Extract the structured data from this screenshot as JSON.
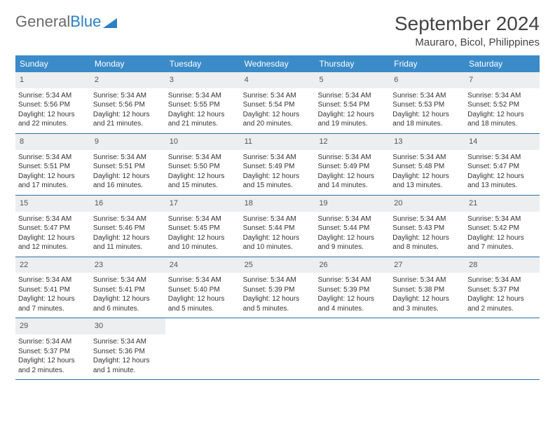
{
  "logo": {
    "text1": "General",
    "text2": "Blue"
  },
  "title": "September 2024",
  "location": "Mauraro, Bicol, Philippines",
  "colors": {
    "header_bg": "#3b8bc9",
    "daynum_bg": "#eceeef",
    "week_border": "#2f6fa3",
    "logo_gray": "#6a6a6a",
    "logo_blue": "#2b7fc3"
  },
  "day_headers": [
    "Sunday",
    "Monday",
    "Tuesday",
    "Wednesday",
    "Thursday",
    "Friday",
    "Saturday"
  ],
  "weeks": [
    [
      {
        "n": "1",
        "sr": "Sunrise: 5:34 AM",
        "ss": "Sunset: 5:56 PM",
        "d1": "Daylight: 12 hours",
        "d2": "and 22 minutes."
      },
      {
        "n": "2",
        "sr": "Sunrise: 5:34 AM",
        "ss": "Sunset: 5:56 PM",
        "d1": "Daylight: 12 hours",
        "d2": "and 21 minutes."
      },
      {
        "n": "3",
        "sr": "Sunrise: 5:34 AM",
        "ss": "Sunset: 5:55 PM",
        "d1": "Daylight: 12 hours",
        "d2": "and 21 minutes."
      },
      {
        "n": "4",
        "sr": "Sunrise: 5:34 AM",
        "ss": "Sunset: 5:54 PM",
        "d1": "Daylight: 12 hours",
        "d2": "and 20 minutes."
      },
      {
        "n": "5",
        "sr": "Sunrise: 5:34 AM",
        "ss": "Sunset: 5:54 PM",
        "d1": "Daylight: 12 hours",
        "d2": "and 19 minutes."
      },
      {
        "n": "6",
        "sr": "Sunrise: 5:34 AM",
        "ss": "Sunset: 5:53 PM",
        "d1": "Daylight: 12 hours",
        "d2": "and 18 minutes."
      },
      {
        "n": "7",
        "sr": "Sunrise: 5:34 AM",
        "ss": "Sunset: 5:52 PM",
        "d1": "Daylight: 12 hours",
        "d2": "and 18 minutes."
      }
    ],
    [
      {
        "n": "8",
        "sr": "Sunrise: 5:34 AM",
        "ss": "Sunset: 5:51 PM",
        "d1": "Daylight: 12 hours",
        "d2": "and 17 minutes."
      },
      {
        "n": "9",
        "sr": "Sunrise: 5:34 AM",
        "ss": "Sunset: 5:51 PM",
        "d1": "Daylight: 12 hours",
        "d2": "and 16 minutes."
      },
      {
        "n": "10",
        "sr": "Sunrise: 5:34 AM",
        "ss": "Sunset: 5:50 PM",
        "d1": "Daylight: 12 hours",
        "d2": "and 15 minutes."
      },
      {
        "n": "11",
        "sr": "Sunrise: 5:34 AM",
        "ss": "Sunset: 5:49 PM",
        "d1": "Daylight: 12 hours",
        "d2": "and 15 minutes."
      },
      {
        "n": "12",
        "sr": "Sunrise: 5:34 AM",
        "ss": "Sunset: 5:49 PM",
        "d1": "Daylight: 12 hours",
        "d2": "and 14 minutes."
      },
      {
        "n": "13",
        "sr": "Sunrise: 5:34 AM",
        "ss": "Sunset: 5:48 PM",
        "d1": "Daylight: 12 hours",
        "d2": "and 13 minutes."
      },
      {
        "n": "14",
        "sr": "Sunrise: 5:34 AM",
        "ss": "Sunset: 5:47 PM",
        "d1": "Daylight: 12 hours",
        "d2": "and 13 minutes."
      }
    ],
    [
      {
        "n": "15",
        "sr": "Sunrise: 5:34 AM",
        "ss": "Sunset: 5:47 PM",
        "d1": "Daylight: 12 hours",
        "d2": "and 12 minutes."
      },
      {
        "n": "16",
        "sr": "Sunrise: 5:34 AM",
        "ss": "Sunset: 5:46 PM",
        "d1": "Daylight: 12 hours",
        "d2": "and 11 minutes."
      },
      {
        "n": "17",
        "sr": "Sunrise: 5:34 AM",
        "ss": "Sunset: 5:45 PM",
        "d1": "Daylight: 12 hours",
        "d2": "and 10 minutes."
      },
      {
        "n": "18",
        "sr": "Sunrise: 5:34 AM",
        "ss": "Sunset: 5:44 PM",
        "d1": "Daylight: 12 hours",
        "d2": "and 10 minutes."
      },
      {
        "n": "19",
        "sr": "Sunrise: 5:34 AM",
        "ss": "Sunset: 5:44 PM",
        "d1": "Daylight: 12 hours",
        "d2": "and 9 minutes."
      },
      {
        "n": "20",
        "sr": "Sunrise: 5:34 AM",
        "ss": "Sunset: 5:43 PM",
        "d1": "Daylight: 12 hours",
        "d2": "and 8 minutes."
      },
      {
        "n": "21",
        "sr": "Sunrise: 5:34 AM",
        "ss": "Sunset: 5:42 PM",
        "d1": "Daylight: 12 hours",
        "d2": "and 7 minutes."
      }
    ],
    [
      {
        "n": "22",
        "sr": "Sunrise: 5:34 AM",
        "ss": "Sunset: 5:41 PM",
        "d1": "Daylight: 12 hours",
        "d2": "and 7 minutes."
      },
      {
        "n": "23",
        "sr": "Sunrise: 5:34 AM",
        "ss": "Sunset: 5:41 PM",
        "d1": "Daylight: 12 hours",
        "d2": "and 6 minutes."
      },
      {
        "n": "24",
        "sr": "Sunrise: 5:34 AM",
        "ss": "Sunset: 5:40 PM",
        "d1": "Daylight: 12 hours",
        "d2": "and 5 minutes."
      },
      {
        "n": "25",
        "sr": "Sunrise: 5:34 AM",
        "ss": "Sunset: 5:39 PM",
        "d1": "Daylight: 12 hours",
        "d2": "and 5 minutes."
      },
      {
        "n": "26",
        "sr": "Sunrise: 5:34 AM",
        "ss": "Sunset: 5:39 PM",
        "d1": "Daylight: 12 hours",
        "d2": "and 4 minutes."
      },
      {
        "n": "27",
        "sr": "Sunrise: 5:34 AM",
        "ss": "Sunset: 5:38 PM",
        "d1": "Daylight: 12 hours",
        "d2": "and 3 minutes."
      },
      {
        "n": "28",
        "sr": "Sunrise: 5:34 AM",
        "ss": "Sunset: 5:37 PM",
        "d1": "Daylight: 12 hours",
        "d2": "and 2 minutes."
      }
    ],
    [
      {
        "n": "29",
        "sr": "Sunrise: 5:34 AM",
        "ss": "Sunset: 5:37 PM",
        "d1": "Daylight: 12 hours",
        "d2": "and 2 minutes."
      },
      {
        "n": "30",
        "sr": "Sunrise: 5:34 AM",
        "ss": "Sunset: 5:36 PM",
        "d1": "Daylight: 12 hours",
        "d2": "and 1 minute."
      },
      null,
      null,
      null,
      null,
      null
    ]
  ]
}
